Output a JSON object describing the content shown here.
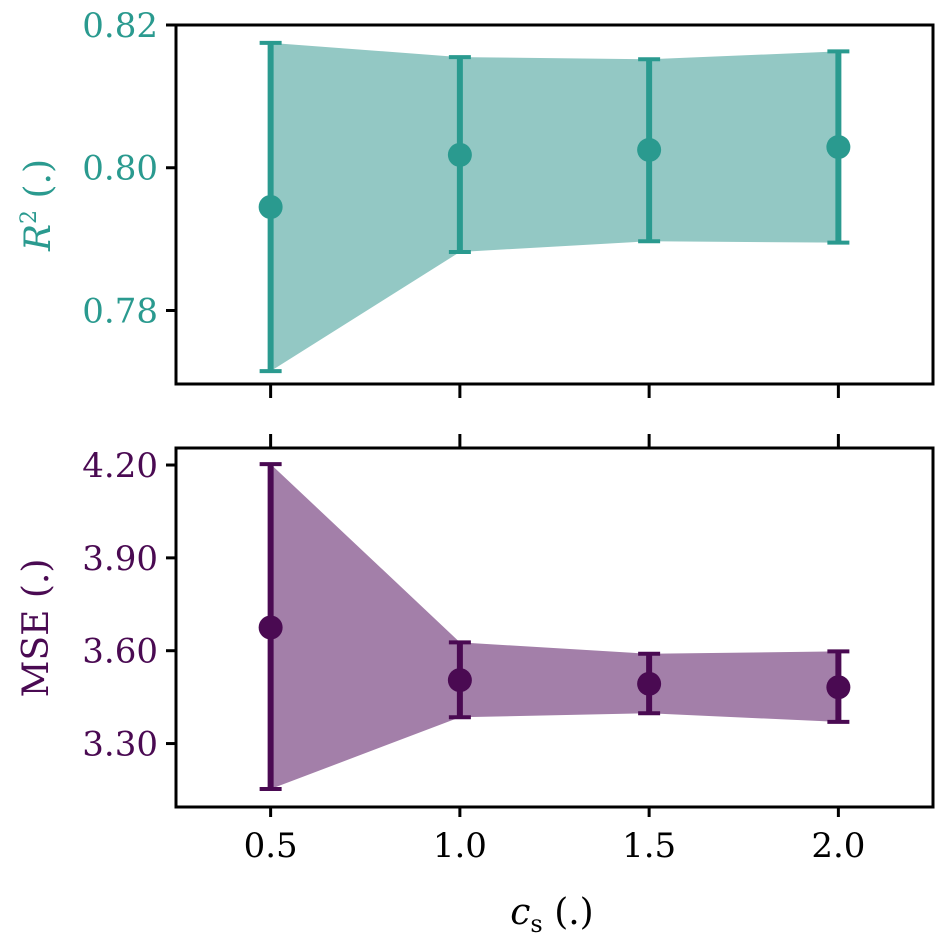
{
  "chart_data": [
    {
      "type": "line",
      "panel": "top",
      "ylabel_main": "R",
      "ylabel_sup": "2",
      "ylabel_rest": " (.)",
      "color": "#2a9a8f",
      "fill_color": "#93c8c4",
      "x": [
        0.5,
        1.0,
        1.5,
        2.0
      ],
      "y": [
        0.7945,
        0.8018,
        0.8025,
        0.8029
      ],
      "y_lower": [
        0.7715,
        0.7882,
        0.7897,
        0.7895
      ],
      "y_upper": [
        0.8175,
        0.8155,
        0.8152,
        0.8163
      ],
      "ylim": [
        0.7697,
        0.82
      ],
      "yticks": [
        0.78,
        0.8,
        0.82
      ],
      "ytick_labels": [
        "0.78",
        "0.80",
        "0.82"
      ],
      "xlim": [
        0.25,
        2.25
      ],
      "xticks": [
        0.5,
        1.0,
        1.5,
        2.0
      ]
    },
    {
      "type": "line",
      "panel": "bottom",
      "ylabel": "MSE (.)",
      "color": "#4a0a52",
      "fill_color": "#a37fa9",
      "x": [
        0.5,
        1.0,
        1.5,
        2.0
      ],
      "y": [
        3.675,
        3.505,
        3.493,
        3.482
      ],
      "y_lower": [
        3.153,
        3.385,
        3.398,
        3.37
      ],
      "y_upper": [
        4.203,
        3.627,
        3.59,
        3.598
      ],
      "ylim": [
        3.095,
        4.255
      ],
      "yticks": [
        3.3,
        3.6,
        3.9,
        4.2
      ],
      "ytick_labels": [
        "3.30",
        "3.60",
        "3.90",
        "4.20"
      ],
      "xlim": [
        0.25,
        2.25
      ],
      "xticks": [
        0.5,
        1.0,
        1.5,
        2.0
      ],
      "xtick_labels": [
        "0.5",
        "1.0",
        "1.5",
        "2.0"
      ],
      "xlabel_main": "c",
      "xlabel_sub": "s",
      "xlabel_rest": " (.)"
    }
  ]
}
